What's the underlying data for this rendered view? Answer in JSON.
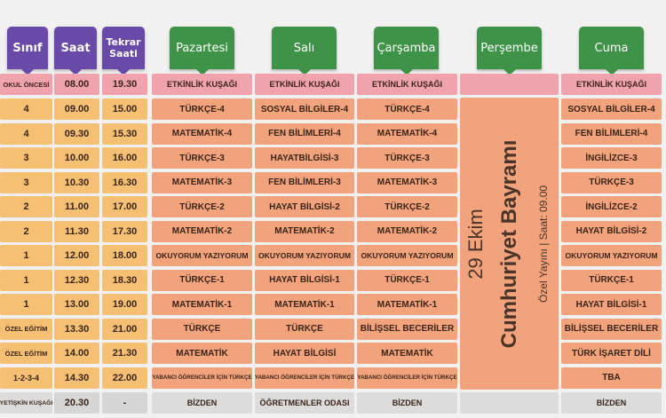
{
  "headers": {
    "class": "Sınıf",
    "time": "Saat",
    "repeat_time": "Tekrar Saati",
    "days": [
      "Pazartesi",
      "Salı",
      "Çarşamba",
      "Perşembe",
      "Cuma"
    ]
  },
  "colors": {
    "purple_header": "#6a4aa8",
    "green_header": "#3f9348",
    "time_cell": "#f5c074",
    "lesson_cell": "#f2a37c",
    "pink_row": "#f0a2ad",
    "gray_row": "#dcdcdc"
  },
  "rows": [
    {
      "grade": "OKUL ÖNCESİ",
      "time": "08.00",
      "repeat": "19.30",
      "mon": "ETKİNLİK KUŞAĞI",
      "tue": "ETKİNLİK KUŞAĞI",
      "wed": "ETKİNLİK KUŞAĞI",
      "thu": "",
      "fri": "ETKİNLİK KUŞAĞI"
    },
    {
      "grade": "4",
      "time": "09.00",
      "repeat": "15.00",
      "mon": "TÜRKÇE-4",
      "tue": "SOSYAL BİLGİLER-4",
      "wed": "TÜRKÇE-4",
      "fri": "SOSYAL BİLGİLER-4"
    },
    {
      "grade": "4",
      "time": "09.30",
      "repeat": "15.30",
      "mon": "MATEMATİK-4",
      "tue": "FEN BİLİMLERİ-4",
      "wed": "MATEMATİK-4",
      "fri": "FEN BİLİMLERİ-4"
    },
    {
      "grade": "3",
      "time": "10.00",
      "repeat": "16.00",
      "mon": "TÜRKÇE-3",
      "tue": "HAYATBİLGİSİ-3",
      "wed": "TÜRKÇE-3",
      "fri": "İNGİLİZCE-3"
    },
    {
      "grade": "3",
      "time": "10.30",
      "repeat": "16.30",
      "mon": "MATEMATİK-3",
      "tue": "FEN BİLİMLERİ-3",
      "wed": "MATEMATİK-3",
      "fri": "TÜRKÇE-3"
    },
    {
      "grade": "2",
      "time": "11.00",
      "repeat": "17.00",
      "mon": "TÜRKÇE-2",
      "tue": "HAYAT BİLGİSİ-2",
      "wed": "TÜRKÇE-2",
      "fri": "İNGİLİZCE-2"
    },
    {
      "grade": "2",
      "time": "11.30",
      "repeat": "17.30",
      "mon": "MATEMATİK-2",
      "tue": "MATEMATİK-2",
      "wed": "MATEMATİK-2",
      "fri": "HAYAT BİLGİSİ-2"
    },
    {
      "grade": "1",
      "time": "12.00",
      "repeat": "18.00",
      "mon": "OKUYORUM YAZIYORUM",
      "tue": "OKUYORUM YAZIYORUM",
      "wed": "OKUYORUM YAZIYORUM",
      "fri": "OKUYORUM YAZIYORUM"
    },
    {
      "grade": "1",
      "time": "12.30",
      "repeat": "18.30",
      "mon": "TÜRKÇE-1",
      "tue": "HAYAT BİLGİSİ-1",
      "wed": "TÜRKÇE-1",
      "fri": "TÜRKÇE-1"
    },
    {
      "grade": "1",
      "time": "13.00",
      "repeat": "19.00",
      "mon": "MATEMATİK-1",
      "tue": "MATEMATİK-1",
      "wed": "MATEMATİK-1",
      "fri": "HAYAT BİLGİSİ-1"
    },
    {
      "grade": "ÖZEL EĞİTİM",
      "time": "13.30",
      "repeat": "21.00",
      "mon": "TÜRKÇE",
      "tue": "TÜRKÇE",
      "wed": "BİLİŞSEL BECERİLER",
      "fri": "BİLİŞSEL BECERİLER"
    },
    {
      "grade": "ÖZEL EĞİTİM",
      "time": "14.00",
      "repeat": "21.30",
      "mon": "MATEMATİK",
      "tue": "HAYAT BİLGİSİ",
      "wed": "MATEMATİK",
      "fri": "TÜRK İŞARET DİLİ"
    },
    {
      "grade": "1-2-3-4",
      "time": "14.30",
      "repeat": "22.00",
      "mon": "YABANCI ÖĞRENCİLER İÇİN TÜRKÇE",
      "tue": "YABANCI ÖĞRENCİLER İÇİN TÜRKÇE",
      "wed": "YABANCI ÖĞRENCİLER İÇİN TÜRKÇE",
      "fri": "TBA"
    },
    {
      "grade": "YETİŞKİN KUŞAĞI",
      "time": "20.30",
      "repeat": "-",
      "mon": "BİZDEN",
      "tue": "ÖĞRETMENLER ODASI",
      "wed": "BİZDEN",
      "thu": "",
      "fri": "BİZDEN"
    }
  ],
  "thursday": {
    "date": "29 Ekim",
    "title": "Cumhuriyet Bayramı",
    "broadcast": "Özel Yayını | Saat: 09.00"
  }
}
